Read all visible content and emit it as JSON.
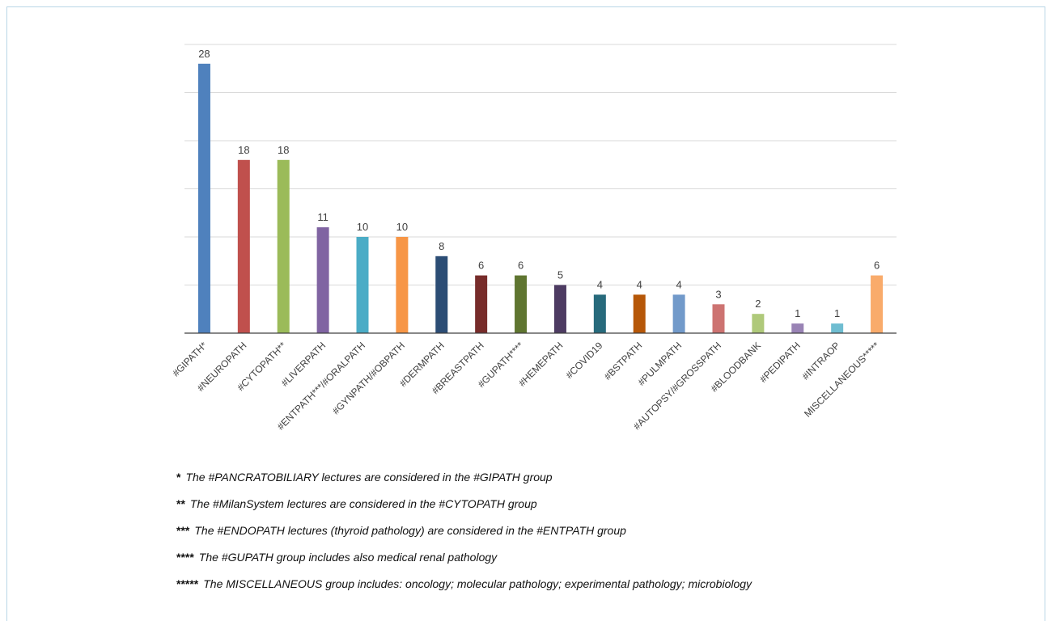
{
  "chart_data": {
    "type": "bar",
    "categories": [
      "#GIPATH*",
      "#NEUROPATH",
      "#CYTOPATH**",
      "#LIVERPATH",
      "#ENTPATH***/#ORALPATH",
      "#GYNPATH/#OBPATH",
      "#DERMPATH",
      "#BREASTPATH",
      "#GUPATH****",
      "#HEMEPATH",
      "#COVID19",
      "#BSTPATH",
      "#PULMPATH",
      "#AUTOPSY/#GROSSPATH",
      "#BLOODBANK",
      "#PEDIPATH",
      "#INTRAOP",
      "MISCELLANEOUS*****"
    ],
    "values": [
      28,
      18,
      18,
      11,
      10,
      10,
      8,
      6,
      6,
      5,
      4,
      4,
      4,
      3,
      2,
      1,
      1,
      6
    ],
    "colors": [
      "#4f81bd",
      "#c0504d",
      "#9bbb59",
      "#8064a2",
      "#4bacc6",
      "#f79646",
      "#2c4d75",
      "#772c2a",
      "#5f7530",
      "#4d3b62",
      "#276a7c",
      "#b65708",
      "#729aca",
      "#cd7371",
      "#afc97a",
      "#9983b5",
      "#6fbdd1",
      "#f9ab6b"
    ],
    "ylim": [
      0,
      30
    ],
    "grid": true,
    "grid_step": 5,
    "legend": "none",
    "title": "",
    "xlabel": "",
    "ylabel": ""
  },
  "notes": [
    {
      "stars": "*",
      "text": "The #PANCRATOBILIARY lectures are considered in the #GIPATH group"
    },
    {
      "stars": "**",
      "text": "The #MilanSystem lectures are considered in the #CYTOPATH group"
    },
    {
      "stars": "***",
      "text": "The #ENDOPATH lectures (thyroid pathology) are considered in the #ENTPATH group"
    },
    {
      "stars": "****",
      "text": "The #GUPATH group includes also medical renal pathology"
    },
    {
      "stars": "*****",
      "text": "The MISCELLANEOUS group includes: oncology; molecular pathology; experimental pathology; microbiology"
    }
  ]
}
